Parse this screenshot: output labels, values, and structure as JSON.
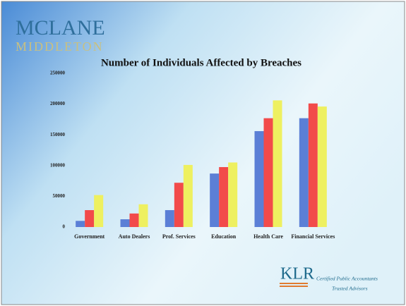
{
  "header_logo": {
    "line1": "MCLANE",
    "line2": "MIDDLETON"
  },
  "chart_data": {
    "type": "bar",
    "title": "Number of Individuals Affected by Breaches",
    "categories": [
      "Government",
      "Auto Dealers",
      "Prof. Services",
      "Education",
      "Health Care",
      "Financial Services"
    ],
    "series": [
      {
        "color": "#5b7fd6",
        "values": [
          10000,
          12600,
          27500,
          87000,
          156000,
          177000
        ]
      },
      {
        "color": "#f24a4a",
        "values": [
          27500,
          22000,
          72000,
          97500,
          177000,
          201000
        ]
      },
      {
        "color": "#eef060",
        "values": [
          52000,
          37000,
          101000,
          105000,
          206000,
          196000
        ]
      }
    ],
    "ylim": [
      0,
      250000
    ],
    "yticks": [
      0,
      50000,
      100000,
      150000,
      200000,
      250000
    ],
    "grid": false
  },
  "footer_logo": {
    "mark": "KLR",
    "line1": "Certified Public Accountants",
    "line2": "Trusted Advisors"
  }
}
